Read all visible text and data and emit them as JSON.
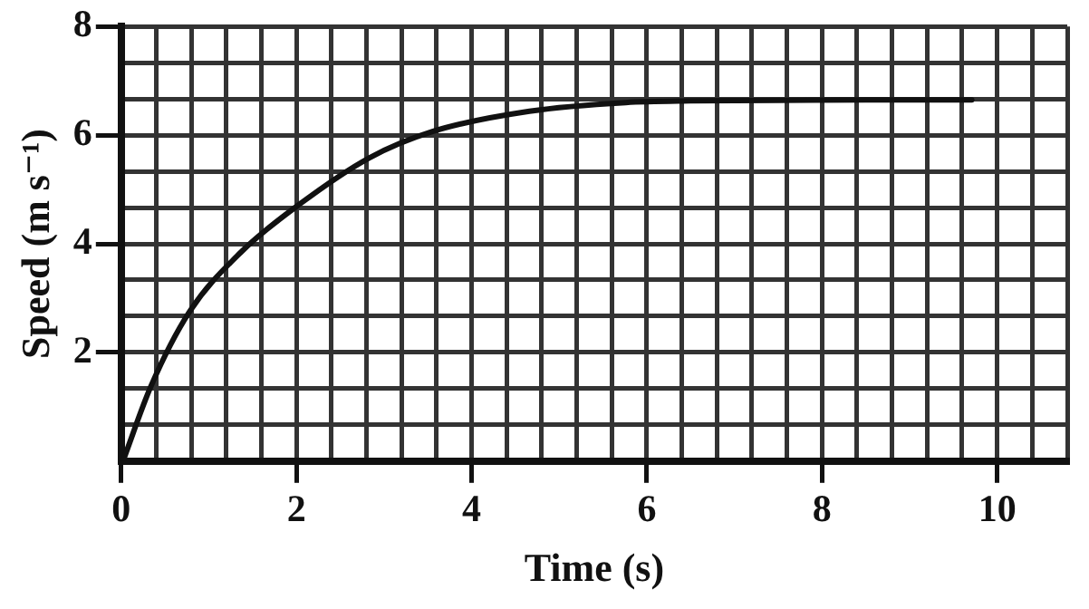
{
  "chart_data": {
    "type": "line",
    "xlabel": "Time (s)",
    "ylabel": "Speed (m s⁻¹)",
    "x": [
      0.02,
      0.34,
      0.78,
      1.37,
      2.02,
      2.83,
      3.56,
      4.66,
      5.76,
      6.5,
      7.5,
      8.5,
      9.71
    ],
    "series": [
      {
        "color": "#111111",
        "values": [
          0,
          1.38,
          2.75,
          3.85,
          4.71,
          5.58,
          6.07,
          6.44,
          6.6,
          6.63,
          6.64,
          6.65,
          6.65
        ]
      }
    ],
    "xlim": [
      0,
      10.8
    ],
    "ylim": [
      0,
      8
    ],
    "xticks": [
      {
        "value": 0,
        "label": "0"
      },
      {
        "value": 0.4,
        "label": null
      },
      {
        "value": 0.8,
        "label": null
      },
      {
        "value": 1.2,
        "label": null
      },
      {
        "value": 1.6,
        "label": null
      },
      {
        "value": 2,
        "label": "2"
      },
      {
        "value": 2.4,
        "label": null
      },
      {
        "value": 2.8,
        "label": null
      },
      {
        "value": 3.2,
        "label": null
      },
      {
        "value": 3.6,
        "label": null
      },
      {
        "value": 4,
        "label": "4"
      },
      {
        "value": 4.4,
        "label": null
      },
      {
        "value": 4.8,
        "label": null
      },
      {
        "value": 5.2,
        "label": null
      },
      {
        "value": 5.6,
        "label": null
      },
      {
        "value": 6,
        "label": "6"
      },
      {
        "value": 6.4,
        "label": null
      },
      {
        "value": 6.8,
        "label": null
      },
      {
        "value": 7.2,
        "label": null
      },
      {
        "value": 7.6,
        "label": null
      },
      {
        "value": 8,
        "label": "8"
      },
      {
        "value": 8.4,
        "label": null
      },
      {
        "value": 8.8,
        "label": null
      },
      {
        "value": 9.2,
        "label": null
      },
      {
        "value": 9.6,
        "label": null
      },
      {
        "value": 10,
        "label": "10"
      },
      {
        "value": 10.4,
        "label": null
      },
      {
        "value": 10.8,
        "label": null
      }
    ],
    "yticks": [
      {
        "value": 0,
        "label": null
      },
      {
        "value": 0.667,
        "label": null
      },
      {
        "value": 1.333,
        "label": null
      },
      {
        "value": 2,
        "label": "2"
      },
      {
        "value": 2.667,
        "label": null
      },
      {
        "value": 3.333,
        "label": null
      },
      {
        "value": 4,
        "label": "4"
      },
      {
        "value": 4.667,
        "label": null
      },
      {
        "value": 5.333,
        "label": null
      },
      {
        "value": 6,
        "label": "6"
      },
      {
        "value": 6.667,
        "label": null
      },
      {
        "value": 7.333,
        "label": null
      },
      {
        "value": 8,
        "label": "8"
      }
    ],
    "grid": true,
    "legend": false,
    "marker": "none",
    "line_style": "solid"
  }
}
